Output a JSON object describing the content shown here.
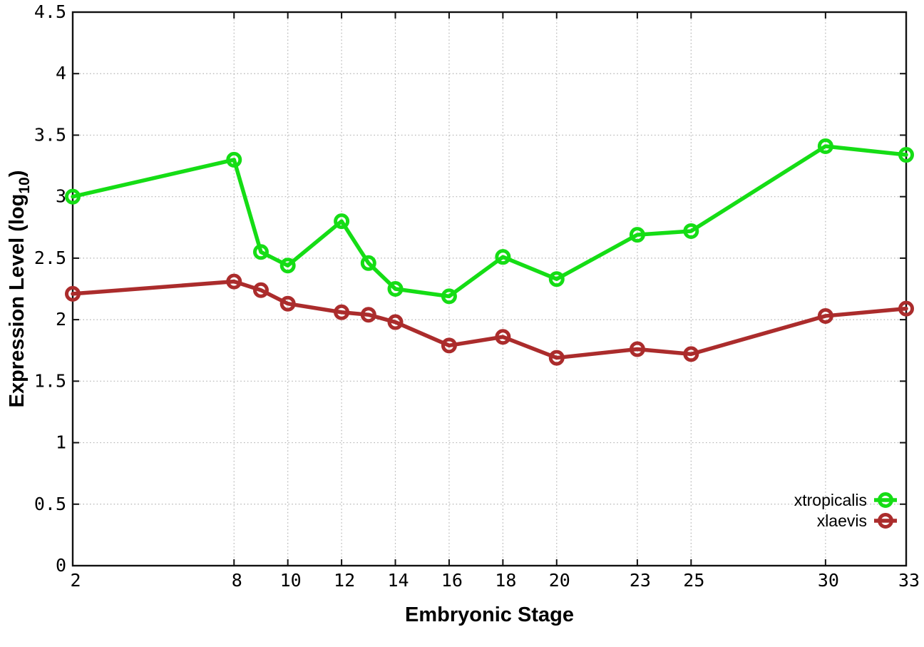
{
  "chart_data": {
    "type": "line",
    "title": "",
    "xlabel": "Embryonic Stage",
    "ylabel": "Expression Level (log10)",
    "ylabel_parts": {
      "main": "Expression Level (log",
      "sub": "10",
      "end": ")"
    },
    "x": [
      2,
      8,
      9,
      10,
      12,
      13,
      14,
      16,
      18,
      20,
      23,
      25,
      30,
      33
    ],
    "xlim": [
      2,
      33
    ],
    "ylim": [
      0,
      4.5
    ],
    "xticks": {
      "values": [
        2,
        8,
        10,
        12,
        14,
        16,
        18,
        20,
        23,
        25,
        30,
        33
      ],
      "labels": [
        "2",
        "8",
        "10",
        "12",
        "14",
        "16",
        "18",
        "20",
        "23",
        "25",
        "30",
        "33"
      ]
    },
    "yticks": {
      "values": [
        0,
        0.5,
        1,
        1.5,
        2,
        2.5,
        3,
        3.5,
        4,
        4.5
      ],
      "labels": [
        "0",
        "0.5",
        "1",
        "1.5",
        "2",
        "2.5",
        "3",
        "3.5",
        "4",
        "4.5"
      ]
    },
    "grid": true,
    "legend": {
      "position": "bottom-right",
      "entries": [
        "xtropicalis",
        "xlaevis"
      ]
    },
    "series": [
      {
        "name": "xtropicalis",
        "color": "#15dd15",
        "marker": "open-circle",
        "values": [
          3.0,
          3.3,
          2.55,
          2.44,
          2.8,
          2.46,
          2.25,
          2.19,
          2.51,
          2.33,
          2.69,
          2.72,
          3.41,
          3.34
        ]
      },
      {
        "name": "xlaevis",
        "color": "#ab2c2c",
        "marker": "open-circle",
        "values": [
          2.21,
          2.31,
          2.24,
          2.13,
          2.06,
          2.04,
          1.98,
          1.79,
          1.86,
          1.69,
          1.76,
          1.72,
          2.03,
          2.09
        ]
      }
    ],
    "colors": {
      "background": "#ffffff",
      "axis": "#111111",
      "grid": "#b5b5b5",
      "text": "#000000"
    }
  }
}
